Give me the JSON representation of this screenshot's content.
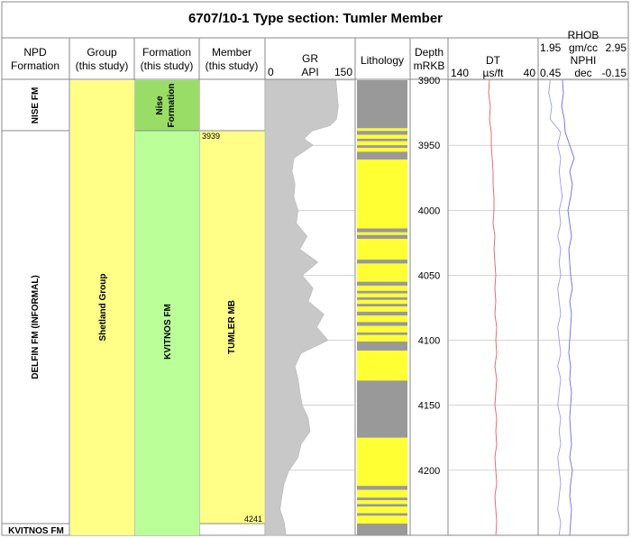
{
  "title": "6707/10-1 Type section: Tumler Member",
  "headers": {
    "npd": [
      "NPD",
      "Formation"
    ],
    "group": [
      "Group",
      "(this study)"
    ],
    "formation": [
      "Formation",
      "(this study)"
    ],
    "member": [
      "Member",
      "(this study)"
    ],
    "gr": {
      "name": "GR",
      "unit": "API",
      "min": "0",
      "max": "150"
    },
    "lithology": "Lithology",
    "depth": [
      "Depth",
      "mRKB"
    ],
    "dt": {
      "name": "DT",
      "unit": "µs/ft",
      "min": "140",
      "max": "40"
    },
    "rhob": {
      "name": "RHOB",
      "unit": "gm/cc",
      "min": "1.95",
      "max": "2.95"
    },
    "nphi": {
      "name": "NPHI",
      "unit": "dec",
      "min": "0.45",
      "max": "-0.15"
    }
  },
  "zones": {
    "npd": [
      {
        "label": "NISE FM",
        "top": 3900,
        "base": 3939
      },
      {
        "label": "DELFIN FM (INFORMAL)",
        "top": 3939,
        "base": 4241
      },
      {
        "label": "KVITNOS FM",
        "top": 4241,
        "base": 4250
      }
    ],
    "group": {
      "label": "Shetland Group"
    },
    "formation": [
      {
        "label": [
          "Nise",
          "Formation"
        ],
        "top": 3900,
        "base": 3939
      },
      {
        "label": "KVITNOS FM",
        "top": 3939,
        "base": 4250
      }
    ],
    "member": {
      "label": "TUMLER MB",
      "top": 3939,
      "base": 4241,
      "top_label": "3939",
      "base_label": "4241"
    }
  },
  "chart_data": {
    "type": "well-log",
    "title": "6707/10-1 Type section: Tumler Member",
    "depth_axis": {
      "label": "Depth mRKB",
      "range": [
        3900,
        4250
      ],
      "ticks": [
        3900,
        3950,
        4000,
        4050,
        4100,
        4150,
        4200
      ]
    },
    "lithology": {
      "colors": {
        "shale": "#999999",
        "sandstone": "#FFFF33"
      },
      "intervals": [
        {
          "top": 3900,
          "base": 3937,
          "lith": "shale"
        },
        {
          "top": 3937,
          "base": 3939,
          "lith": "sandstone"
        },
        {
          "top": 3939,
          "base": 3942,
          "lith": "shale"
        },
        {
          "top": 3942,
          "base": 3945,
          "lith": "sandstone"
        },
        {
          "top": 3945,
          "base": 3947,
          "lith": "shale"
        },
        {
          "top": 3947,
          "base": 3950,
          "lith": "sandstone"
        },
        {
          "top": 3950,
          "base": 3952,
          "lith": "shale"
        },
        {
          "top": 3952,
          "base": 3955,
          "lith": "sandstone"
        },
        {
          "top": 3955,
          "base": 3961,
          "lith": "shale"
        },
        {
          "top": 3961,
          "base": 4014,
          "lith": "sandstone"
        },
        {
          "top": 4014,
          "base": 4017,
          "lith": "shale"
        },
        {
          "top": 4017,
          "base": 4019,
          "lith": "sandstone"
        },
        {
          "top": 4019,
          "base": 4022,
          "lith": "shale"
        },
        {
          "top": 4022,
          "base": 4038,
          "lith": "sandstone"
        },
        {
          "top": 4038,
          "base": 4041,
          "lith": "shale"
        },
        {
          "top": 4041,
          "base": 4055,
          "lith": "sandstone"
        },
        {
          "top": 4055,
          "base": 4058,
          "lith": "shale"
        },
        {
          "top": 4058,
          "base": 4062,
          "lith": "sandstone"
        },
        {
          "top": 4062,
          "base": 4064,
          "lith": "shale"
        },
        {
          "top": 4064,
          "base": 4067,
          "lith": "sandstone"
        },
        {
          "top": 4067,
          "base": 4069,
          "lith": "shale"
        },
        {
          "top": 4069,
          "base": 4072,
          "lith": "sandstone"
        },
        {
          "top": 4072,
          "base": 4074,
          "lith": "shale"
        },
        {
          "top": 4074,
          "base": 4078,
          "lith": "sandstone"
        },
        {
          "top": 4078,
          "base": 4081,
          "lith": "shale"
        },
        {
          "top": 4081,
          "base": 4086,
          "lith": "sandstone"
        },
        {
          "top": 4086,
          "base": 4089,
          "lith": "shale"
        },
        {
          "top": 4089,
          "base": 4094,
          "lith": "sandstone"
        },
        {
          "top": 4094,
          "base": 4096,
          "lith": "shale"
        },
        {
          "top": 4096,
          "base": 4101,
          "lith": "sandstone"
        },
        {
          "top": 4101,
          "base": 4108,
          "lith": "shale"
        },
        {
          "top": 4108,
          "base": 4131,
          "lith": "sandstone"
        },
        {
          "top": 4131,
          "base": 4175,
          "lith": "shale"
        },
        {
          "top": 4175,
          "base": 4212,
          "lith": "sandstone"
        },
        {
          "top": 4212,
          "base": 4215,
          "lith": "shale"
        },
        {
          "top": 4215,
          "base": 4221,
          "lith": "sandstone"
        },
        {
          "top": 4221,
          "base": 4223,
          "lith": "shale"
        },
        {
          "top": 4223,
          "base": 4226,
          "lith": "sandstone"
        },
        {
          "top": 4226,
          "base": 4228,
          "lith": "shale"
        },
        {
          "top": 4228,
          "base": 4233,
          "lith": "sandstone"
        },
        {
          "top": 4233,
          "base": 4235,
          "lith": "shale"
        },
        {
          "top": 4235,
          "base": 4241,
          "lith": "sandstone"
        },
        {
          "top": 4241,
          "base": 4250,
          "lith": "shale"
        }
      ]
    },
    "series": [
      {
        "name": "GR",
        "unit": "API",
        "range": [
          0,
          150
        ],
        "color": "#c8c8c8",
        "fill": true,
        "depth": [
          3900,
          3910,
          3920,
          3930,
          3935,
          3939,
          3945,
          3950,
          3960,
          3970,
          3980,
          3990,
          4000,
          4010,
          4020,
          4030,
          4040,
          4050,
          4060,
          4070,
          4080,
          4090,
          4100,
          4110,
          4120,
          4130,
          4140,
          4150,
          4160,
          4170,
          4180,
          4190,
          4200,
          4210,
          4220,
          4230,
          4240,
          4250
        ],
        "values": [
          118,
          120,
          122,
          119,
          108,
          78,
          65,
          80,
          48,
          45,
          50,
          48,
          55,
          52,
          70,
          58,
          88,
          62,
          80,
          72,
          98,
          86,
          105,
          60,
          50,
          55,
          58,
          62,
          72,
          75,
          60,
          55,
          40,
          32,
          28,
          25,
          32,
          35
        ]
      },
      {
        "name": "DT",
        "unit": "µs/ft",
        "range": [
          140,
          40
        ],
        "color": "#e06060",
        "depth": [
          3900,
          3910,
          3920,
          3930,
          3940,
          3950,
          3960,
          3970,
          3980,
          3990,
          4000,
          4010,
          4020,
          4030,
          4040,
          4050,
          4060,
          4070,
          4080,
          4090,
          4100,
          4110,
          4120,
          4130,
          4140,
          4150,
          4160,
          4170,
          4180,
          4190,
          4200,
          4210,
          4220,
          4230,
          4240,
          4250
        ],
        "values": [
          94,
          95,
          93,
          94,
          92,
          92,
          91,
          90,
          90,
          89,
          89,
          90,
          88,
          89,
          88,
          87,
          88,
          87,
          88,
          86,
          87,
          86,
          88,
          86,
          87,
          88,
          86,
          87,
          86,
          88,
          87,
          86,
          88,
          87,
          86,
          87
        ]
      },
      {
        "name": "RHOB",
        "unit": "gm/cc",
        "range": [
          1.95,
          2.95
        ],
        "color": "#6b6be6",
        "depth": [
          3900,
          3910,
          3920,
          3930,
          3940,
          3950,
          3960,
          3970,
          3980,
          3990,
          4000,
          4010,
          4020,
          4030,
          4040,
          4050,
          4060,
          4070,
          4080,
          4090,
          4100,
          4110,
          4120,
          4130,
          4140,
          4150,
          4160,
          4170,
          4180,
          4190,
          4200,
          4210,
          4220,
          4230,
          4240,
          4250
        ],
        "values": [
          2.22,
          2.23,
          2.21,
          2.24,
          2.25,
          2.3,
          2.35,
          2.3,
          2.33,
          2.31,
          2.28,
          2.3,
          2.32,
          2.29,
          2.3,
          2.31,
          2.33,
          2.3,
          2.32,
          2.31,
          2.3,
          2.29,
          2.31,
          2.3,
          2.32,
          2.31,
          2.3,
          2.31,
          2.32,
          2.3,
          2.33,
          2.31,
          2.3,
          2.32,
          2.31,
          2.3
        ]
      },
      {
        "name": "NPHI",
        "unit": "dec",
        "range": [
          0.45,
          -0.15
        ],
        "color": "#9a9af0",
        "depth": [
          3900,
          3910,
          3920,
          3930,
          3940,
          3950,
          3960,
          3970,
          3980,
          3990,
          4000,
          4010,
          4020,
          4030,
          4040,
          4050,
          4060,
          4070,
          4080,
          4090,
          4100,
          4110,
          4120,
          4130,
          4140,
          4150,
          4160,
          4170,
          4180,
          4190,
          4200,
          4210,
          4220,
          4230,
          4240,
          4250
        ],
        "values": [
          0.37,
          0.38,
          0.36,
          0.37,
          0.3,
          0.32,
          0.3,
          0.31,
          0.3,
          0.29,
          0.31,
          0.3,
          0.32,
          0.3,
          0.31,
          0.3,
          0.32,
          0.31,
          0.3,
          0.32,
          0.31,
          0.3,
          0.32,
          0.3,
          0.31,
          0.32,
          0.3,
          0.31,
          0.3,
          0.32,
          0.31,
          0.3,
          0.31,
          0.32,
          0.3,
          0.31
        ]
      }
    ],
    "colors": {
      "group_fill": "#FFFF88",
      "formation_nise_fill": "#99DD66",
      "formation_kvitnos_fill": "#BBFF99",
      "member_fill": "#FFFF88",
      "grid": "#bbbbbb"
    }
  }
}
